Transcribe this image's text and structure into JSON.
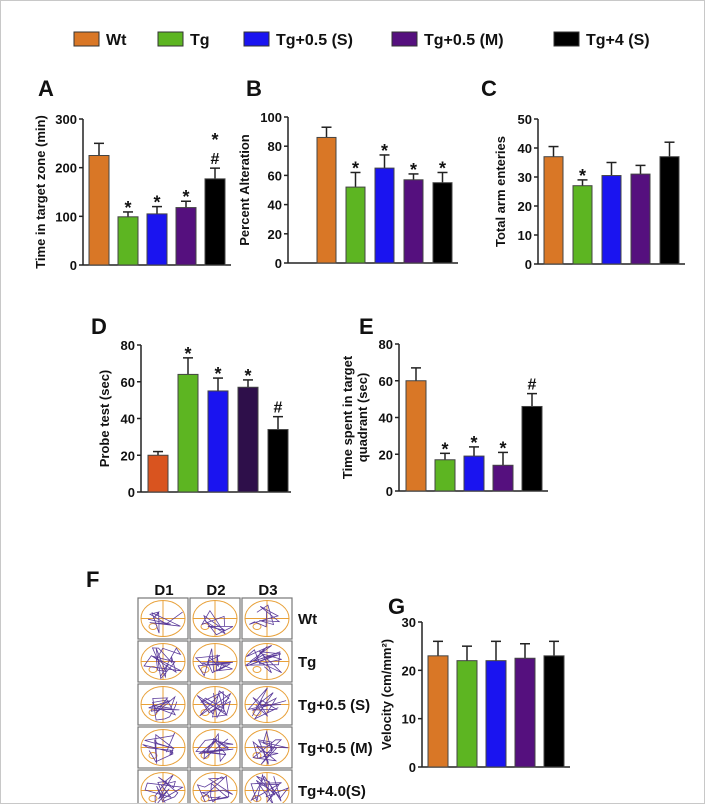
{
  "legend": [
    {
      "label": "Wt",
      "color": "#d97726"
    },
    {
      "label": "Tg",
      "color": "#5db522"
    },
    {
      "label": "Tg+0.5 (S)",
      "color": "#1a14f0"
    },
    {
      "label": "Tg+0.5 (M)",
      "color": "#55107e"
    },
    {
      "label": "Tg+4 (S)",
      "color": "#000000"
    }
  ],
  "chart_data": [
    {
      "id": "A",
      "type": "bar",
      "panel": "A",
      "ylabel": "Time in target zone (min)",
      "ylim": [
        0,
        300
      ],
      "yticks": [
        0,
        100,
        200,
        300
      ],
      "categories": [
        "Wt",
        "Tg",
        "Tg+0.5 (S)",
        "Tg+0.5 (M)",
        "Tg+4 (S)"
      ],
      "values": [
        225,
        99,
        105,
        118,
        177
      ],
      "errors": [
        25,
        10,
        15,
        13,
        22
      ],
      "annotations": [
        "",
        "*",
        "*",
        "*",
        "*\n#"
      ],
      "colors": [
        "#d97726",
        "#5db522",
        "#1a14f0",
        "#55107e",
        "#000000"
      ]
    },
    {
      "id": "B",
      "type": "bar",
      "panel": "B",
      "ylabel": "Percent Alteration",
      "ylim": [
        0,
        100
      ],
      "yticks": [
        0,
        20,
        40,
        60,
        80,
        100
      ],
      "categories": [
        "Wt",
        "Tg",
        "Tg+0.5 (S)",
        "Tg+0.5 (M)",
        "Tg+4 (S)"
      ],
      "values": [
        86,
        52,
        65,
        57,
        55
      ],
      "errors": [
        7,
        10,
        9,
        4,
        7
      ],
      "annotations": [
        "",
        "*",
        "*",
        "*",
        "*"
      ],
      "colors": [
        "#d97726",
        "#5db522",
        "#1a14f0",
        "#55107e",
        "#000000"
      ]
    },
    {
      "id": "C",
      "type": "bar",
      "panel": "C",
      "ylabel": "Total arm enteries",
      "ylim": [
        0,
        50
      ],
      "yticks": [
        0,
        10,
        20,
        30,
        40,
        50
      ],
      "categories": [
        "Wt",
        "Tg",
        "Tg+0.5 (S)",
        "Tg+0.5 (M)",
        "Tg+4 (S)"
      ],
      "values": [
        37,
        27,
        30.5,
        31,
        37
      ],
      "errors": [
        3.5,
        2,
        4.5,
        3,
        5
      ],
      "annotations": [
        "",
        "*",
        "",
        "",
        ""
      ],
      "colors": [
        "#d97726",
        "#5db522",
        "#1a14f0",
        "#55107e",
        "#000000"
      ]
    },
    {
      "id": "D",
      "type": "bar",
      "panel": "D",
      "ylabel": "Probe test (sec)",
      "ylim": [
        0,
        80
      ],
      "yticks": [
        0,
        20,
        40,
        60,
        80
      ],
      "categories": [
        "Wt",
        "Tg",
        "Tg+0.5 (S)",
        "Tg+0.5 (M)",
        "Tg+4 (S)"
      ],
      "values": [
        20,
        64,
        55,
        57,
        34
      ],
      "errors": [
        2,
        9,
        7,
        4,
        7
      ],
      "annotations": [
        "",
        "*",
        "*",
        "*",
        "#"
      ],
      "colors": [
        "#d9541f",
        "#5db522",
        "#1a14f0",
        "#2e0f4a",
        "#000000"
      ]
    },
    {
      "id": "E",
      "type": "bar",
      "panel": "E",
      "ylabel": "Time spent in target quadrant (sec)",
      "ylim": [
        0,
        80
      ],
      "yticks": [
        0,
        20,
        40,
        60,
        80
      ],
      "categories": [
        "Wt",
        "Tg",
        "Tg+0.5 (S)",
        "Tg+0.5 (M)",
        "Tg+4 (S)"
      ],
      "values": [
        60,
        17,
        19,
        14,
        46
      ],
      "errors": [
        7,
        3.5,
        5,
        7,
        7
      ],
      "annotations": [
        "",
        "*",
        "*",
        "*",
        "#"
      ],
      "colors": [
        "#d97726",
        "#5db522",
        "#1a14f0",
        "#55107e",
        "#000000"
      ]
    },
    {
      "id": "G",
      "type": "bar",
      "panel": "G",
      "ylabel": "Velocity (cm/mm²)",
      "ylim": [
        0,
        30
      ],
      "yticks": [
        0,
        10,
        20,
        30
      ],
      "categories": [
        "Wt",
        "Tg",
        "Tg+0.5 (S)",
        "Tg+0.5 (M)",
        "Tg+4 (S)"
      ],
      "values": [
        23,
        22,
        22,
        22.5,
        23
      ],
      "errors": [
        3,
        3,
        4,
        3,
        3
      ],
      "annotations": [
        "",
        "",
        "",
        "",
        ""
      ],
      "colors": [
        "#d97726",
        "#5db522",
        "#1a14f0",
        "#55107e",
        "#000000"
      ]
    }
  ],
  "maze": {
    "panel": "F",
    "columns": [
      "D1",
      "D2",
      "D3"
    ],
    "rows": [
      "Wt",
      "Tg",
      "Tg+0.5 (S)",
      "Tg+0.5 (M)",
      "Tg+4.0(S)"
    ]
  }
}
